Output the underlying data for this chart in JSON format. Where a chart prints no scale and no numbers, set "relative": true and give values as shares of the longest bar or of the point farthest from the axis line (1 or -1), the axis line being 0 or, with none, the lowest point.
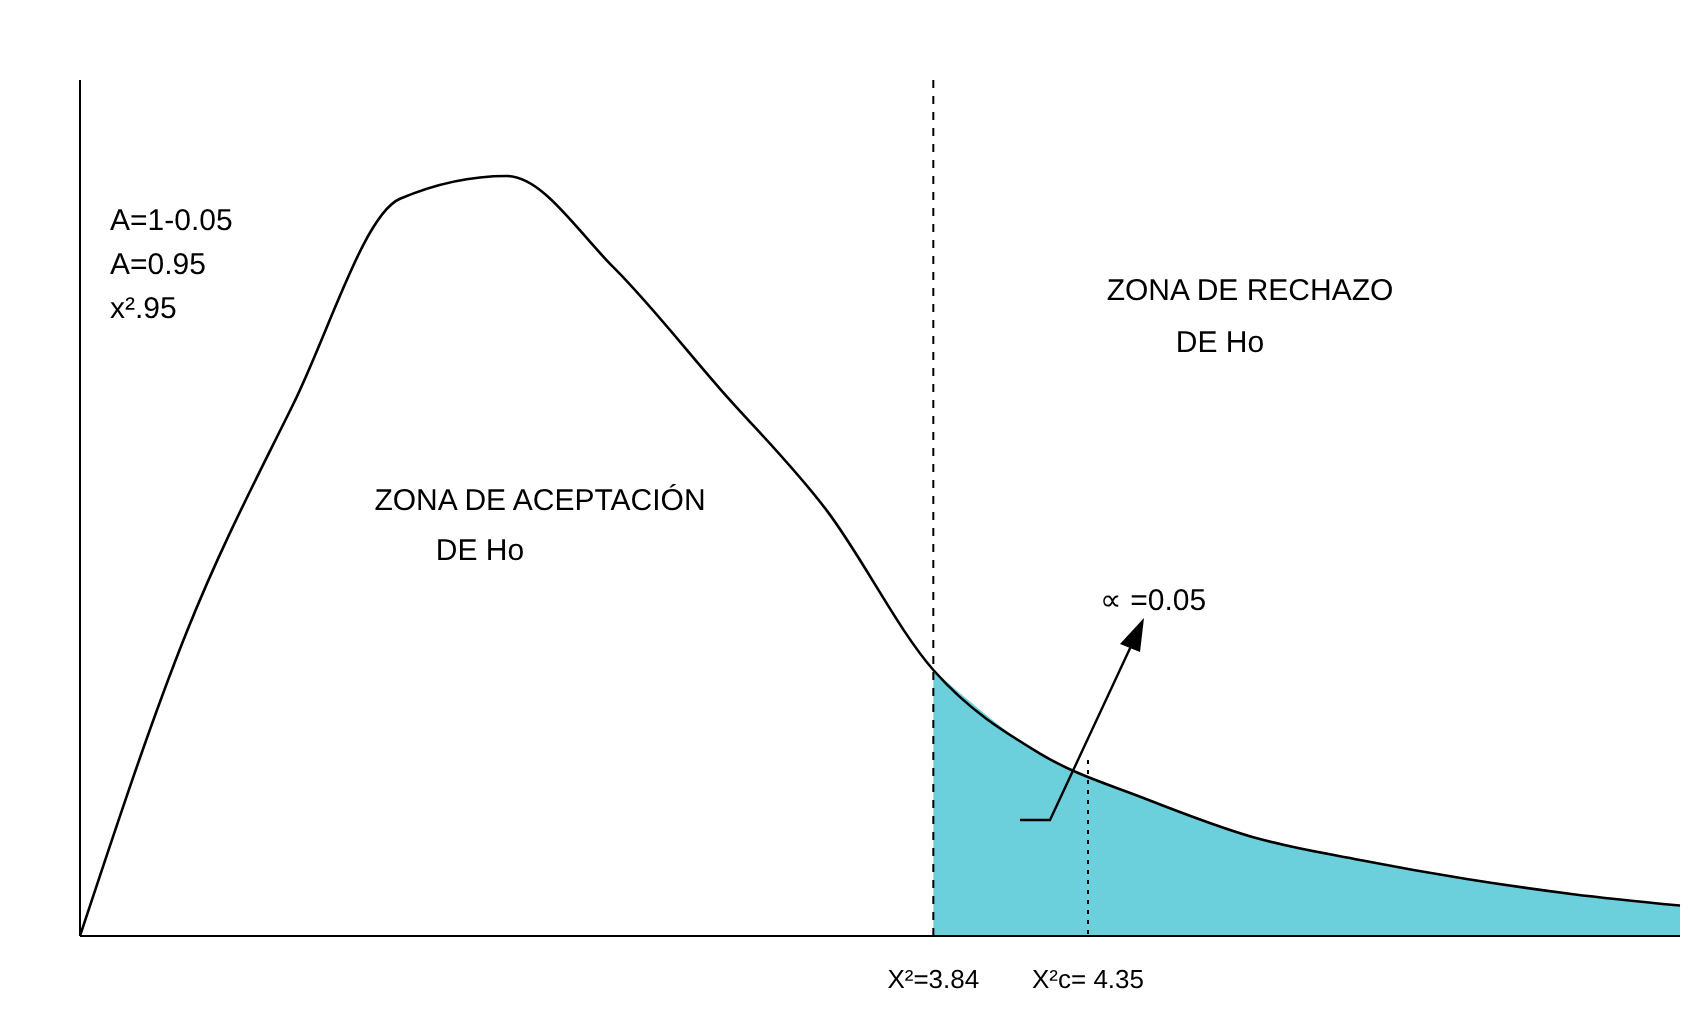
{
  "chart_data": {
    "type": "line",
    "relative": true,
    "categories": [
      null,
      null,
      null,
      null,
      null,
      null,
      null,
      null,
      null,
      null,
      null,
      null,
      null,
      null,
      null,
      null
    ],
    "series": [
      {
        "type": "area",
        "color": "#6ccfdc",
        "values": [
          null,
          null,
          null,
          null,
          null,
          null,
          null,
          null,
          0.35,
          0.24,
          0.18,
          0.13,
          0.1,
          0.075,
          0.055,
          0.04
        ]
      },
      {
        "color": "#000000",
        "values": [
          0,
          0.4,
          0.7,
          0.97,
          1,
          0.88,
          0.72,
          0.56,
          0.35,
          0.24,
          0.18,
          0.13,
          0.1,
          0.075,
          0.055,
          0.04
        ]
      }
    ],
    "annotations": [
      "A=1-0.05",
      "A=0.95",
      "x².95",
      "ZONA DE ACEPTACIÓN",
      "DE Ho",
      "ZONA DE RECHAZO",
      "DE Ho",
      "∝ =0.05",
      {
        "text": "X²=3.84"
      },
      {
        "text": "X²c= 4.35"
      }
    ]
  }
}
